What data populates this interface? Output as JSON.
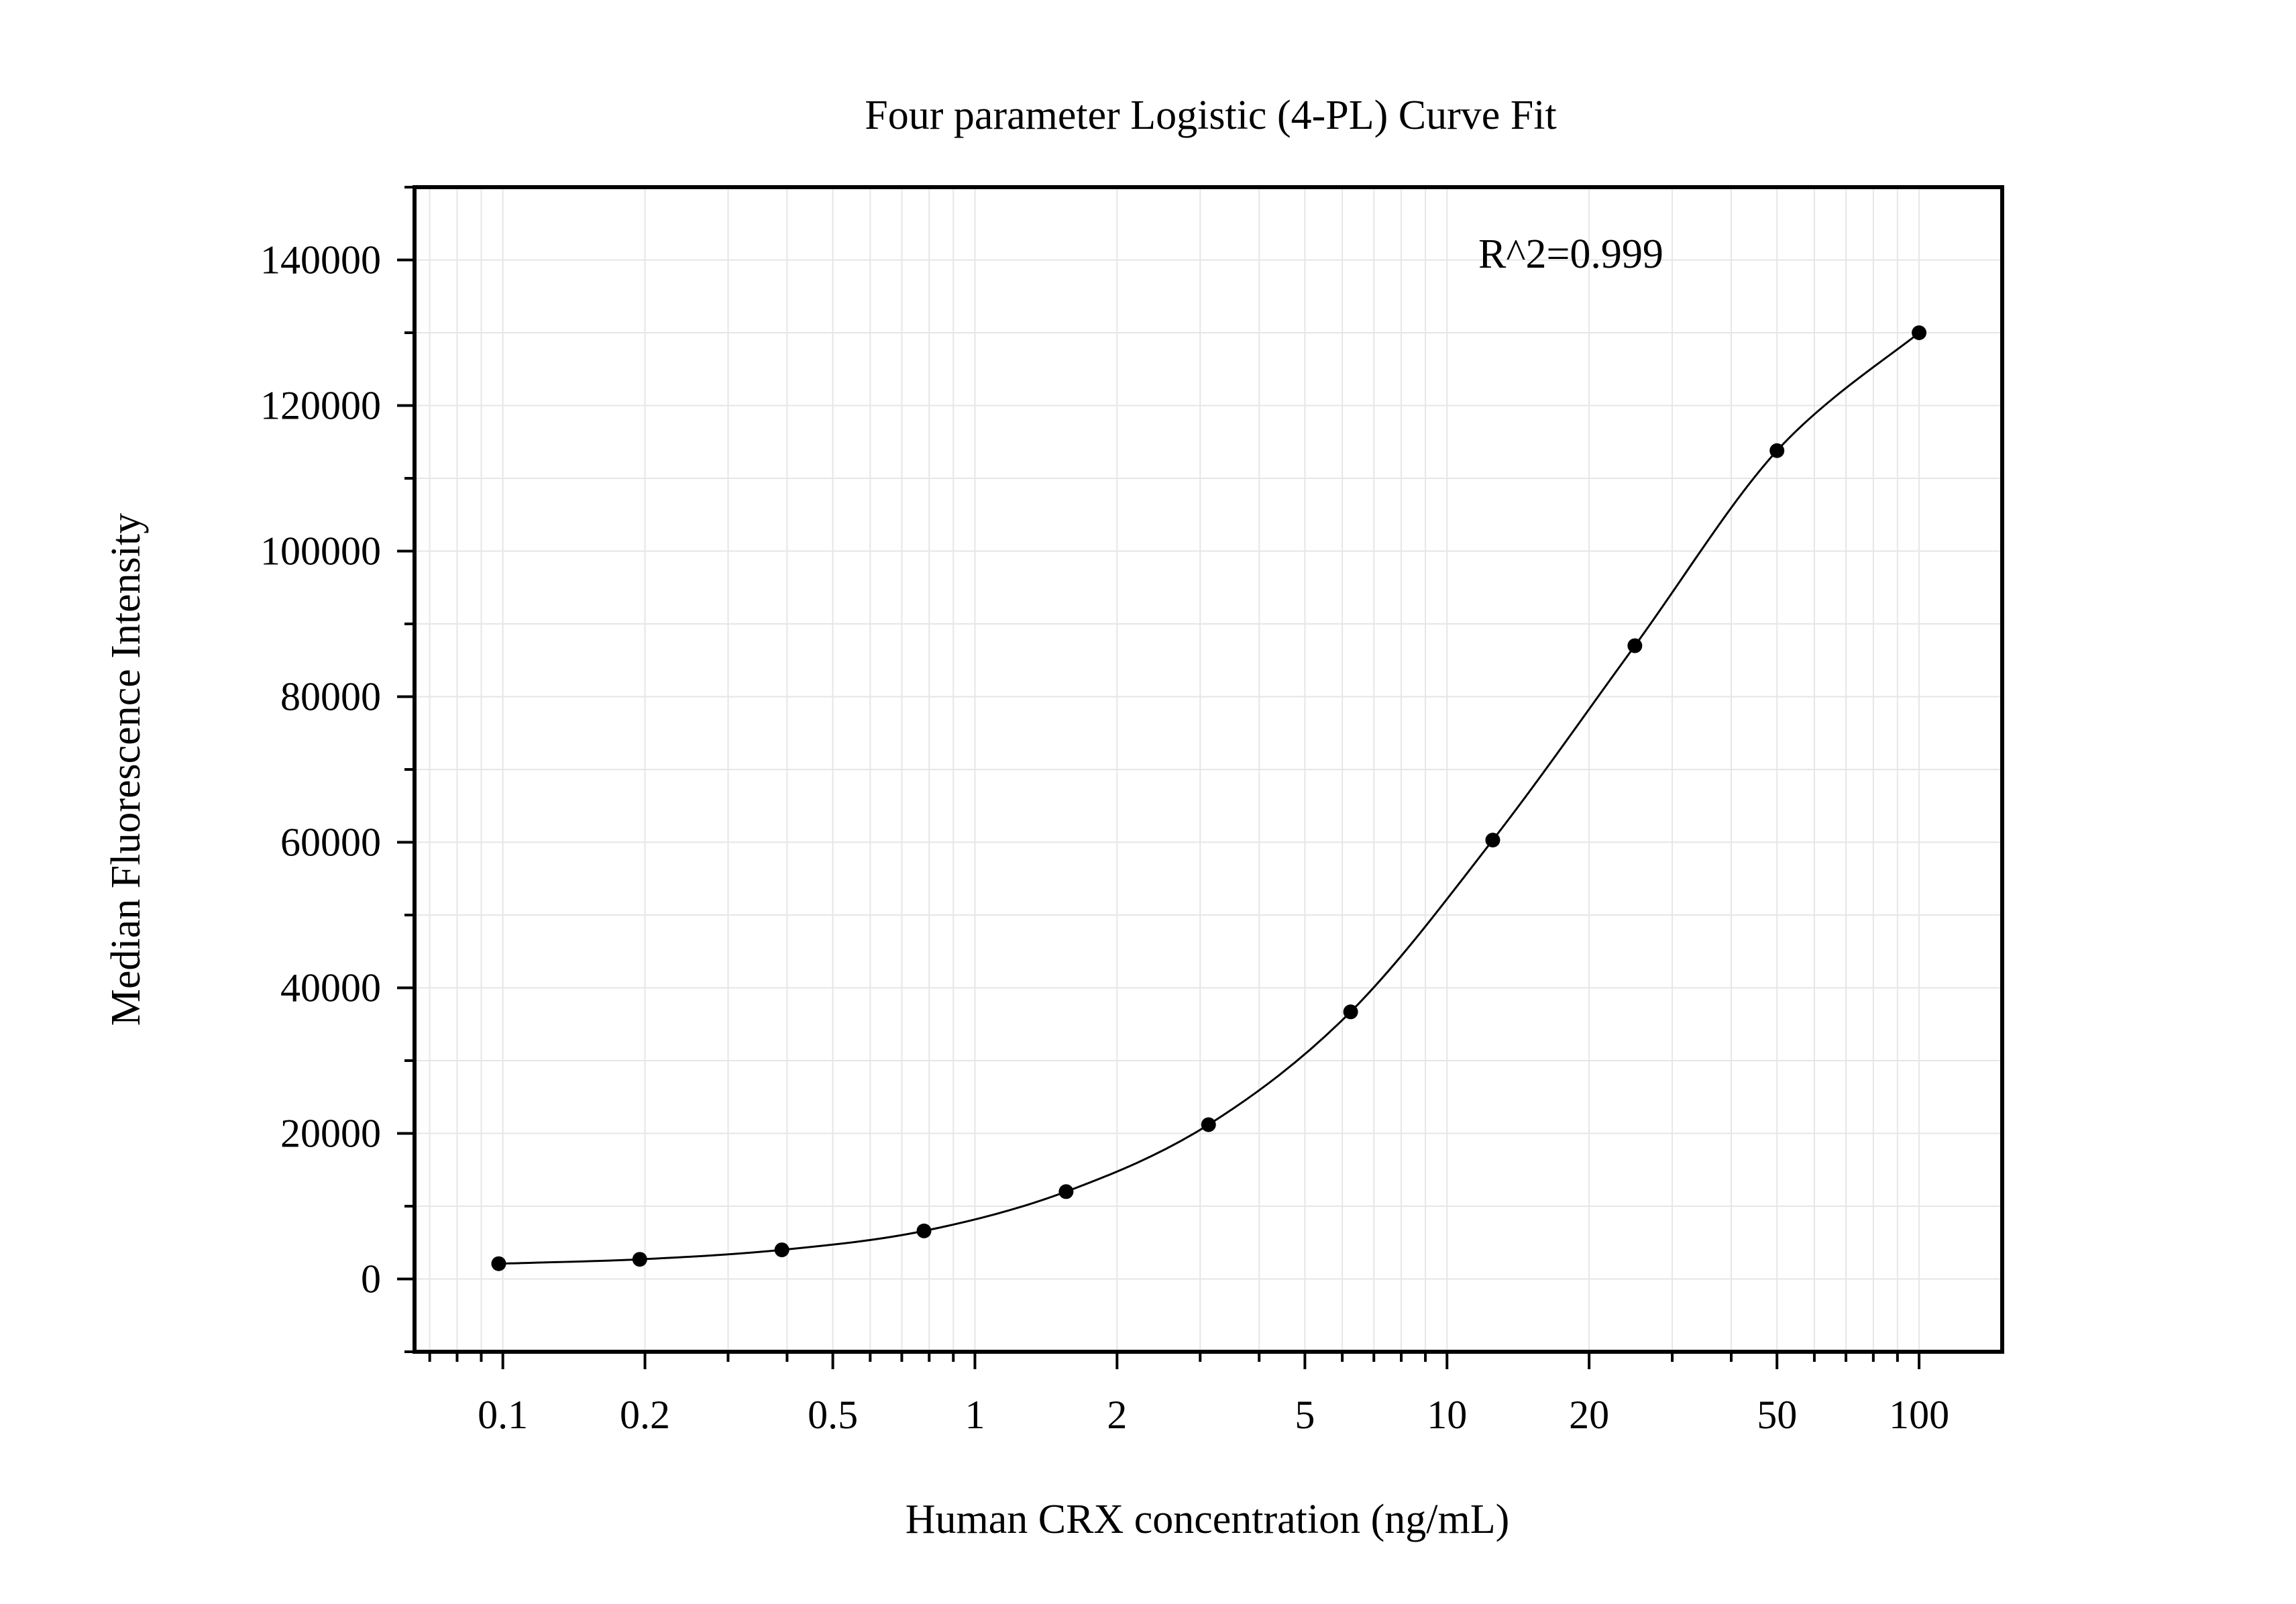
{
  "chart_data": {
    "type": "scatter",
    "title": "Four parameter Logistic (4-PL) Curve Fit",
    "xlabel": "Human CRX concentration (ng/mL)",
    "ylabel": "Median Fluorescence Intensity",
    "x_scale": "log",
    "xlim": [
      0.065,
      150
    ],
    "ylim": [
      -10000,
      150000
    ],
    "x_ticks": [
      0.1,
      0.2,
      0.5,
      1,
      2,
      5,
      10,
      20,
      50,
      100
    ],
    "x_tick_labels": [
      "0.1",
      "0.2",
      "0.5",
      "1",
      "2",
      "5",
      "10",
      "20",
      "50",
      "100"
    ],
    "y_ticks": [
      0,
      20000,
      40000,
      60000,
      80000,
      100000,
      120000,
      140000
    ],
    "y_tick_labels": [
      "0",
      "20000",
      "40000",
      "60000",
      "80000",
      "100000",
      "120000",
      "140000"
    ],
    "grid": true,
    "annotation": "R^2=0.999",
    "series": [
      {
        "type": "scatter",
        "x": [
          0.098,
          0.195,
          0.39,
          0.78,
          1.56,
          3.125,
          6.25,
          12.5,
          25,
          50,
          100
        ],
        "y": [
          2100,
          2700,
          4000,
          6600,
          12000,
          21200,
          36700,
          60300,
          87000,
          113800,
          130000
        ]
      },
      {
        "type": "line",
        "fit": "4-PL",
        "x": [
          0.098,
          0.195,
          0.39,
          0.78,
          1.56,
          3.125,
          6.25,
          12.5,
          25,
          50,
          100
        ],
        "y": [
          2100,
          2700,
          4000,
          6600,
          12000,
          21200,
          36700,
          60300,
          87000,
          113800,
          130000
        ]
      }
    ],
    "colors": {
      "points": "#000000",
      "line": "#000000",
      "grid": "#e6e6e6",
      "frame": "#000000"
    }
  }
}
